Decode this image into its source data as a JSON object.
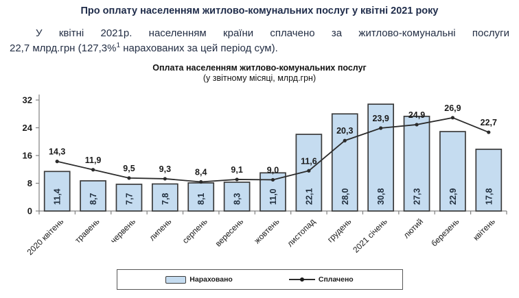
{
  "page": {
    "title": "Про оплату населенням житлово-комунальних послуг у квітні 2021 року"
  },
  "intro": {
    "line1": "У квітні 2021р. населенням країни сплачено за житлово-комунальні послуги",
    "line2_before_sup": "22,7 млрд.грн (127,3%",
    "sup": "1",
    "line2_after_sup": " нарахованих за цей період сум)."
  },
  "chart_data": {
    "type": "bar",
    "title": "Оплата населенням житлово-комунальних послуг",
    "subtitle": "(у звітному місяці, млрд.грн)",
    "categories": [
      "2020 квітень",
      "травень",
      "червень",
      "липень",
      "серпень",
      "вересень",
      "жовтень",
      "листопад",
      "грудень",
      "2021 січень",
      "лютий",
      "березень",
      "квітень"
    ],
    "series": [
      {
        "name": "Нараховано",
        "type": "bar",
        "values": [
          11.4,
          8.7,
          7.7,
          7.8,
          8.1,
          8.3,
          11.0,
          22.1,
          28.0,
          30.8,
          27.3,
          22.9,
          17.8
        ],
        "labels": [
          "11,4",
          "8,7",
          "7,7",
          "7,8",
          "8,1",
          "8,3",
          "11,0",
          "22,1",
          "28,0",
          "30,8",
          "27,3",
          "22,9",
          "17,8"
        ]
      },
      {
        "name": "Сплачено",
        "type": "line",
        "values": [
          14.3,
          11.9,
          9.5,
          9.3,
          8.4,
          9.1,
          9.0,
          11.6,
          20.3,
          23.9,
          24.9,
          26.9,
          22.7
        ],
        "labels": [
          "14,3",
          "11,9",
          "9,5",
          "9,3",
          "8,4",
          "9,1",
          "9,0",
          "11,6",
          "20,3",
          "23,9",
          "24,9",
          "26,9",
          "22,7"
        ]
      }
    ],
    "ylim": [
      0,
      32
    ],
    "yticks": [
      0,
      8,
      16,
      24,
      32
    ],
    "grid": false,
    "legend_position": "bottom",
    "colors": {
      "bar_fill": "#C5DCF0",
      "bar_border": "#3A3A3A",
      "line": "#2B2B2B",
      "axis": "#808080",
      "bar_label": "#22303F",
      "title_text": "#1F2C4A"
    }
  }
}
